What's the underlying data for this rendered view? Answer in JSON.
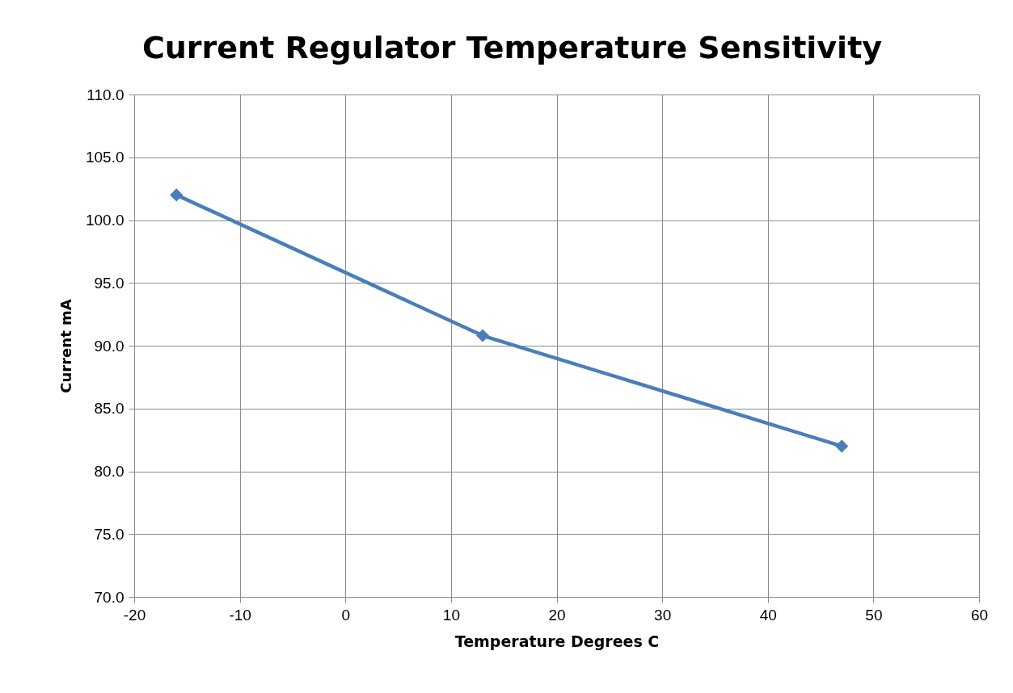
{
  "chart_data": {
    "type": "line",
    "title": "Current Regulator Temperature Sensitivity",
    "xlabel": "Temperature Degrees C",
    "ylabel": "Current mA",
    "x": [
      -16,
      13,
      47
    ],
    "series": [
      {
        "color": "#4a7ebb",
        "values": [
          102.0,
          90.8,
          82.0
        ]
      }
    ],
    "xlim": [
      -20,
      60
    ],
    "xticks": [
      -20,
      -10,
      0,
      10,
      20,
      30,
      40,
      50,
      60
    ],
    "ylim": [
      70,
      110
    ],
    "yticks": [
      {
        "value": 70,
        "label": "70.0"
      },
      {
        "value": 75,
        "label": "75.0"
      },
      {
        "value": 80,
        "label": "80.0"
      },
      {
        "value": 85,
        "label": "85.0"
      },
      {
        "value": 90,
        "label": "90.0"
      },
      {
        "value": 95,
        "label": "95.0"
      },
      {
        "value": 100,
        "label": "100.0"
      },
      {
        "value": 105,
        "label": "105.0"
      },
      {
        "value": 110,
        "label": "110.0"
      }
    ],
    "grid": true,
    "marker": "diamond",
    "line_style": "solid",
    "legend": false
  }
}
